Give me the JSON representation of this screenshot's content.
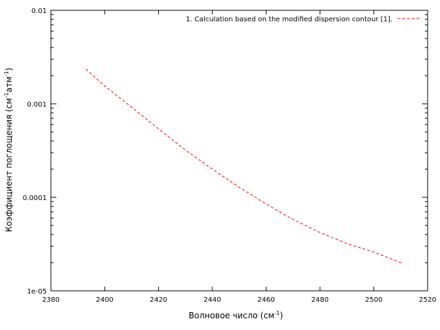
{
  "chart_data": {
    "type": "line",
    "title": "",
    "xlabel": "Волновое число (см",
    "xlabel_sup": "-1",
    "xlabel_end": ")",
    "ylabel_parts": [
      "Коэффициент поглощения (см",
      "-1",
      "атм",
      "-1",
      ")"
    ],
    "x_scale": "linear",
    "y_scale": "log",
    "xlim": [
      2380,
      2520
    ],
    "ylim": [
      1e-05,
      0.01
    ],
    "x_ticks": [
      2380,
      2400,
      2420,
      2440,
      2460,
      2480,
      2500,
      2520
    ],
    "x_tick_labels": [
      "2380",
      "2400",
      "2420",
      "2440",
      "2460",
      "2480",
      "2500",
      "2520"
    ],
    "y_ticks": [
      1e-05,
      0.0001,
      0.001,
      0.01
    ],
    "y_tick_labels": [
      "1e-05",
      "0.0001",
      "0.001",
      "0.01"
    ],
    "grid": false,
    "legend_position": "top-right",
    "series": [
      {
        "name": "1. Calculation based on the modified dispersion contour [1].",
        "color": "#ff0000",
        "line_style": "dashed",
        "x": [
          2393,
          2400,
          2410,
          2420,
          2430,
          2440,
          2450,
          2460,
          2470,
          2480,
          2490,
          2500,
          2511
        ],
        "y": [
          0.00235,
          0.00155,
          0.00092,
          0.00054,
          0.00032,
          0.0002,
          0.000128,
          8.5e-05,
          5.8e-05,
          4.2e-05,
          3.2e-05,
          2.6e-05,
          1.95e-05
        ]
      }
    ]
  }
}
